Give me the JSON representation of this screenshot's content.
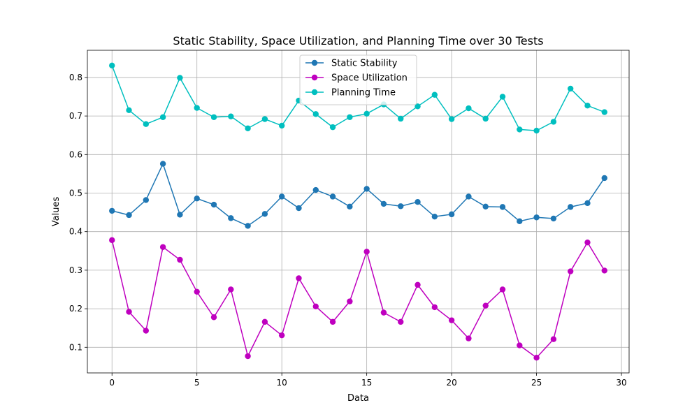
{
  "chart_data": {
    "type": "line",
    "title": "Static Stability, Space Utilization, and Planning Time over 30 Tests",
    "xlabel": "Data",
    "ylabel": "Values",
    "x": [
      0,
      1,
      2,
      3,
      4,
      5,
      6,
      7,
      8,
      9,
      10,
      11,
      12,
      13,
      14,
      15,
      16,
      17,
      18,
      19,
      20,
      21,
      22,
      23,
      24,
      25,
      26,
      27,
      28,
      29
    ],
    "xlim": [
      -1.45,
      30.45
    ],
    "ylim": [
      0.0335,
      0.8705
    ],
    "xticks": [
      0,
      5,
      10,
      15,
      20,
      25,
      30
    ],
    "yticks": [
      0.1,
      0.2,
      0.3,
      0.4,
      0.5,
      0.6,
      0.7,
      0.8
    ],
    "grid": true,
    "legend_position": "upper center",
    "series": [
      {
        "name": "Static Stability",
        "color": "#1f77b4",
        "marker": "circle",
        "values": [
          0.454,
          0.443,
          0.482,
          0.576,
          0.444,
          0.486,
          0.47,
          0.435,
          0.415,
          0.446,
          0.491,
          0.461,
          0.508,
          0.491,
          0.465,
          0.511,
          0.472,
          0.466,
          0.477,
          0.439,
          0.445,
          0.491,
          0.465,
          0.464,
          0.427,
          0.437,
          0.434,
          0.464,
          0.474,
          0.539
        ]
      },
      {
        "name": "Space Utilization",
        "color": "#bf00bf",
        "marker": "circle",
        "values": [
          0.378,
          0.192,
          0.143,
          0.36,
          0.327,
          0.244,
          0.178,
          0.25,
          0.077,
          0.166,
          0.131,
          0.279,
          0.206,
          0.166,
          0.219,
          0.348,
          0.19,
          0.166,
          0.262,
          0.204,
          0.17,
          0.123,
          0.208,
          0.25,
          0.105,
          0.073,
          0.121,
          0.297,
          0.372,
          0.299
        ]
      },
      {
        "name": "Planning Time",
        "color": "#00bfbf",
        "marker": "circle",
        "values": [
          0.831,
          0.715,
          0.679,
          0.697,
          0.799,
          0.721,
          0.697,
          0.699,
          0.668,
          0.692,
          0.675,
          0.74,
          0.705,
          0.671,
          0.697,
          0.706,
          0.73,
          0.693,
          0.725,
          0.755,
          0.692,
          0.72,
          0.693,
          0.75,
          0.665,
          0.662,
          0.685,
          0.771,
          0.727,
          0.71
        ]
      }
    ]
  }
}
